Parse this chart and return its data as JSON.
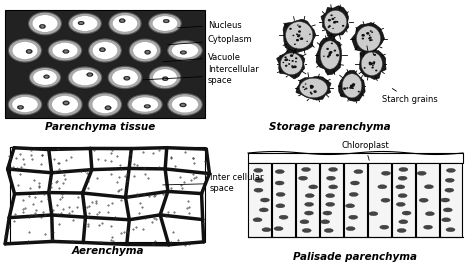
{
  "bg_color": "#ffffff",
  "fig_width": 4.74,
  "fig_height": 2.66,
  "dpi": 100,
  "labels": {
    "top_left_title": "Parenchyma tissue",
    "top_right_title": "Storage parenchyma",
    "bottom_left_title": "Aerenchyma",
    "bottom_right_title": "Palisade parenchyma"
  },
  "ann_top_left": [
    "Nucleus",
    "Cytoplasm",
    "Vacuole",
    "Intercellular\nspace"
  ],
  "ann_top_right": "Starch grains",
  "ann_bottom_left": "Inter cellular\nspace",
  "ann_bottom_right": "Chloroplast",
  "title_fontsize": 7.5,
  "label_fontsize": 6,
  "title_fontstyle": "italic",
  "title_fontweight": "bold"
}
